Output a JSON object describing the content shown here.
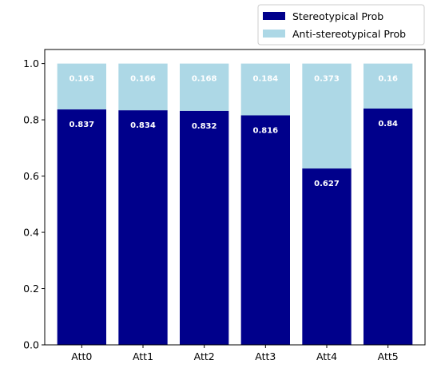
{
  "chart_data": {
    "type": "bar",
    "stacked": true,
    "categories": [
      "Att0",
      "Att1",
      "Att2",
      "Att3",
      "Att4",
      "Att5"
    ],
    "series": [
      {
        "name": "Stereotypical Prob",
        "color": "#00008b",
        "values": [
          0.837,
          0.834,
          0.832,
          0.816,
          0.627,
          0.84
        ],
        "labels": [
          "0.837",
          "0.834",
          "0.832",
          "0.816",
          "0.627",
          "0.84"
        ]
      },
      {
        "name": "Anti-stereotypical Prob",
        "color": "#add8e6",
        "values": [
          0.163,
          0.166,
          0.168,
          0.184,
          0.373,
          0.16
        ],
        "labels": [
          "0.163",
          "0.166",
          "0.168",
          "0.184",
          "0.373",
          "0.16"
        ]
      }
    ],
    "ylim": [
      0,
      1.05
    ],
    "yticks": [
      "0.0",
      "0.2",
      "0.4",
      "0.6",
      "0.8",
      "1.0"
    ],
    "grid": false,
    "legend_position": "top-right, above plot"
  }
}
